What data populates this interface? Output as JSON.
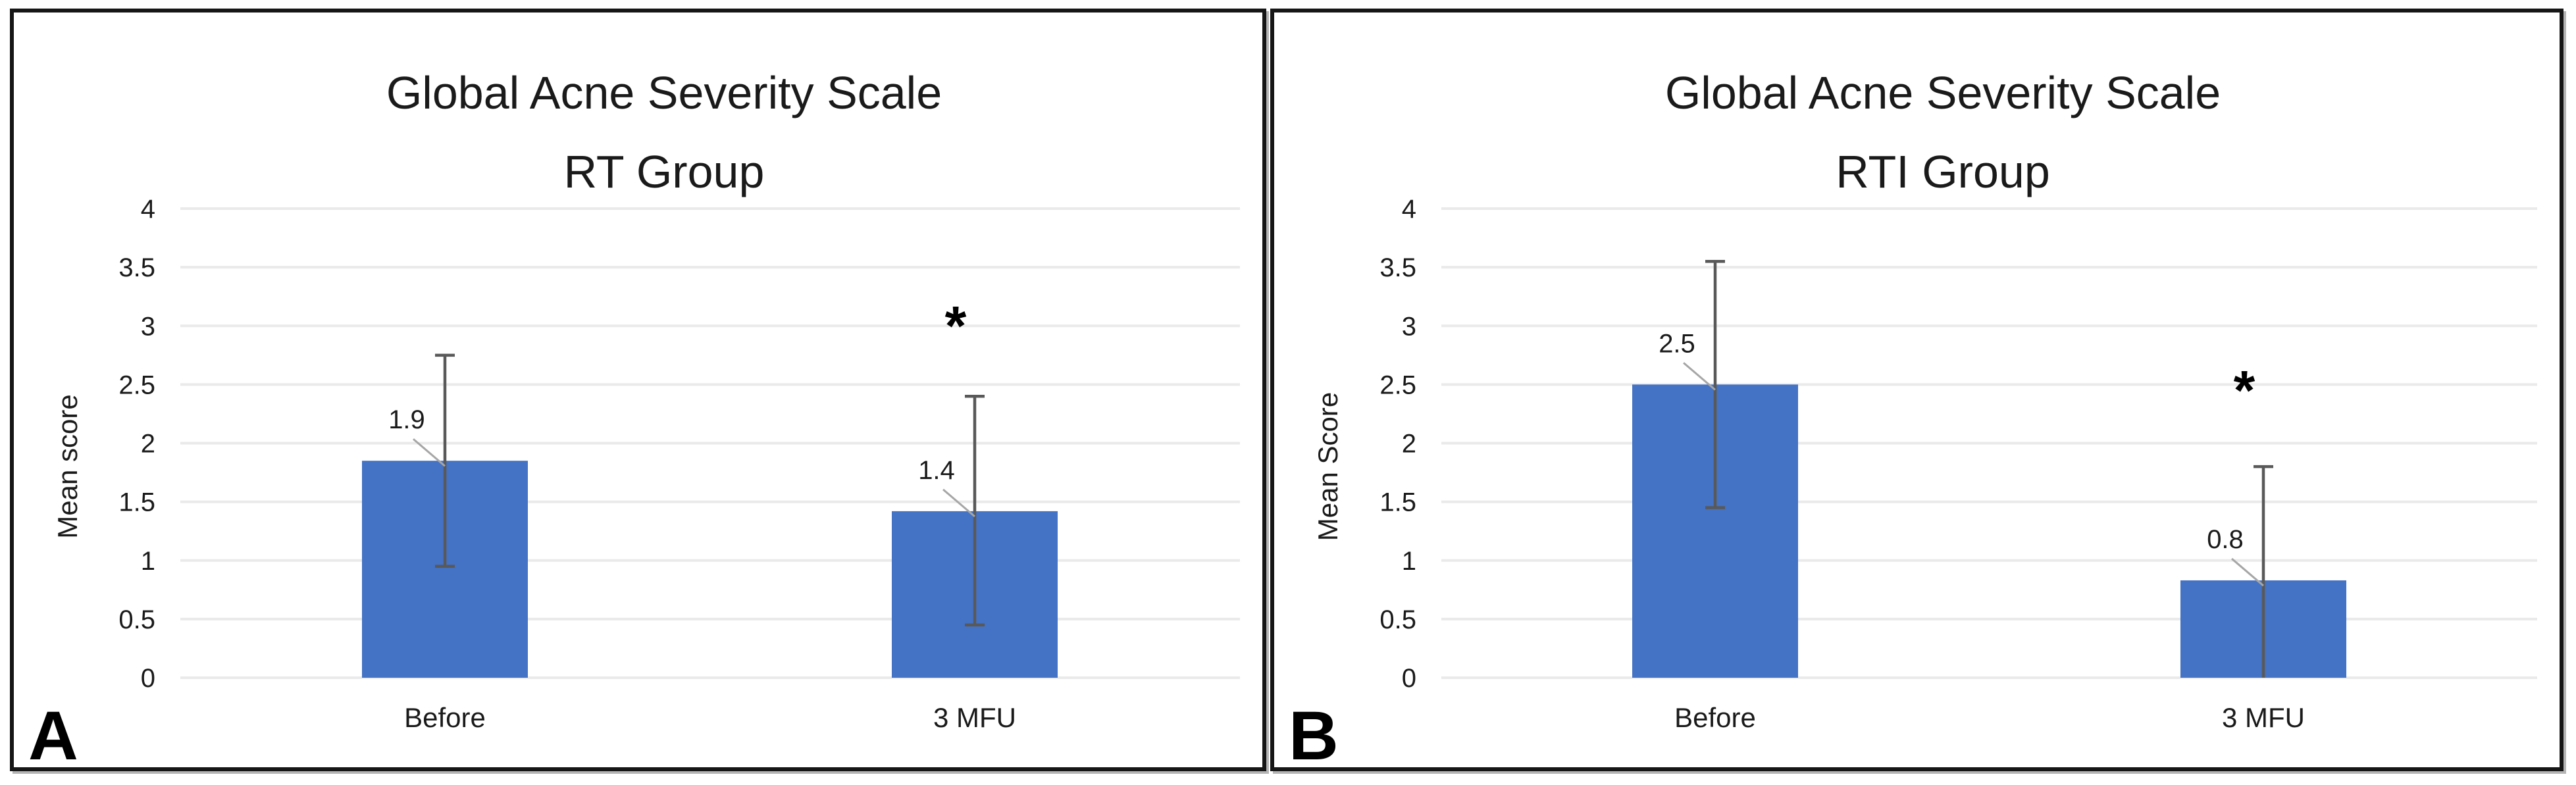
{
  "figure": {
    "background": "#ffffff",
    "colors": {
      "bar_fill": "#4472C4",
      "error_bar": "#595959",
      "gridline": "#EAEAEA",
      "leader_line": "#A6A6A6",
      "text": "#1a1a1a",
      "panel_border": "#161616"
    }
  },
  "chart_data": [
    {
      "type": "bar",
      "panel_label": "A",
      "title": "Global Acne Severity Scale",
      "subtitle": "RT Group",
      "ylabel": "Mean score",
      "xlabel": "",
      "ylim": [
        0,
        4
      ],
      "ytick_step": 0.5,
      "ytick_labels": [
        "0",
        "0.5",
        "1",
        "1.5",
        "2",
        "2.5",
        "3",
        "3.5",
        "4"
      ],
      "grid": true,
      "legend": false,
      "categories": [
        "Before",
        "3 MFU"
      ],
      "values": [
        1.9,
        1.4
      ],
      "data_labels": [
        "1.9",
        "1.4"
      ],
      "bar_tops_drawn": [
        1.85,
        1.42
      ],
      "error_bars": [
        {
          "low": 0.95,
          "high": 2.75,
          "low_cap": true
        },
        {
          "low": 0.45,
          "high": 2.4,
          "low_cap": true
        }
      ],
      "annotations": [
        {
          "text": "*",
          "category_index": 1,
          "y": 3.12
        }
      ]
    },
    {
      "type": "bar",
      "panel_label": "B",
      "title": "Global Acne Severity Scale",
      "subtitle": "RTI Group",
      "ylabel": "Mean Score",
      "xlabel": "",
      "ylim": [
        0,
        4
      ],
      "ytick_step": 0.5,
      "ytick_labels": [
        "0",
        "0.5",
        "1",
        "1.5",
        "2",
        "2.5",
        "3",
        "3.5",
        "4"
      ],
      "grid": true,
      "legend": false,
      "categories": [
        "Before",
        "3 MFU"
      ],
      "values": [
        2.5,
        0.8
      ],
      "data_labels": [
        "2.5",
        "0.8"
      ],
      "bar_tops_drawn": [
        2.5,
        0.83
      ],
      "error_bars": [
        {
          "low": 1.45,
          "high": 3.55,
          "low_cap": true
        },
        {
          "low": 0.0,
          "high": 1.8,
          "low_cap": false
        }
      ],
      "annotations": [
        {
          "text": "*",
          "category_index": 1,
          "y": 2.57
        }
      ]
    }
  ]
}
